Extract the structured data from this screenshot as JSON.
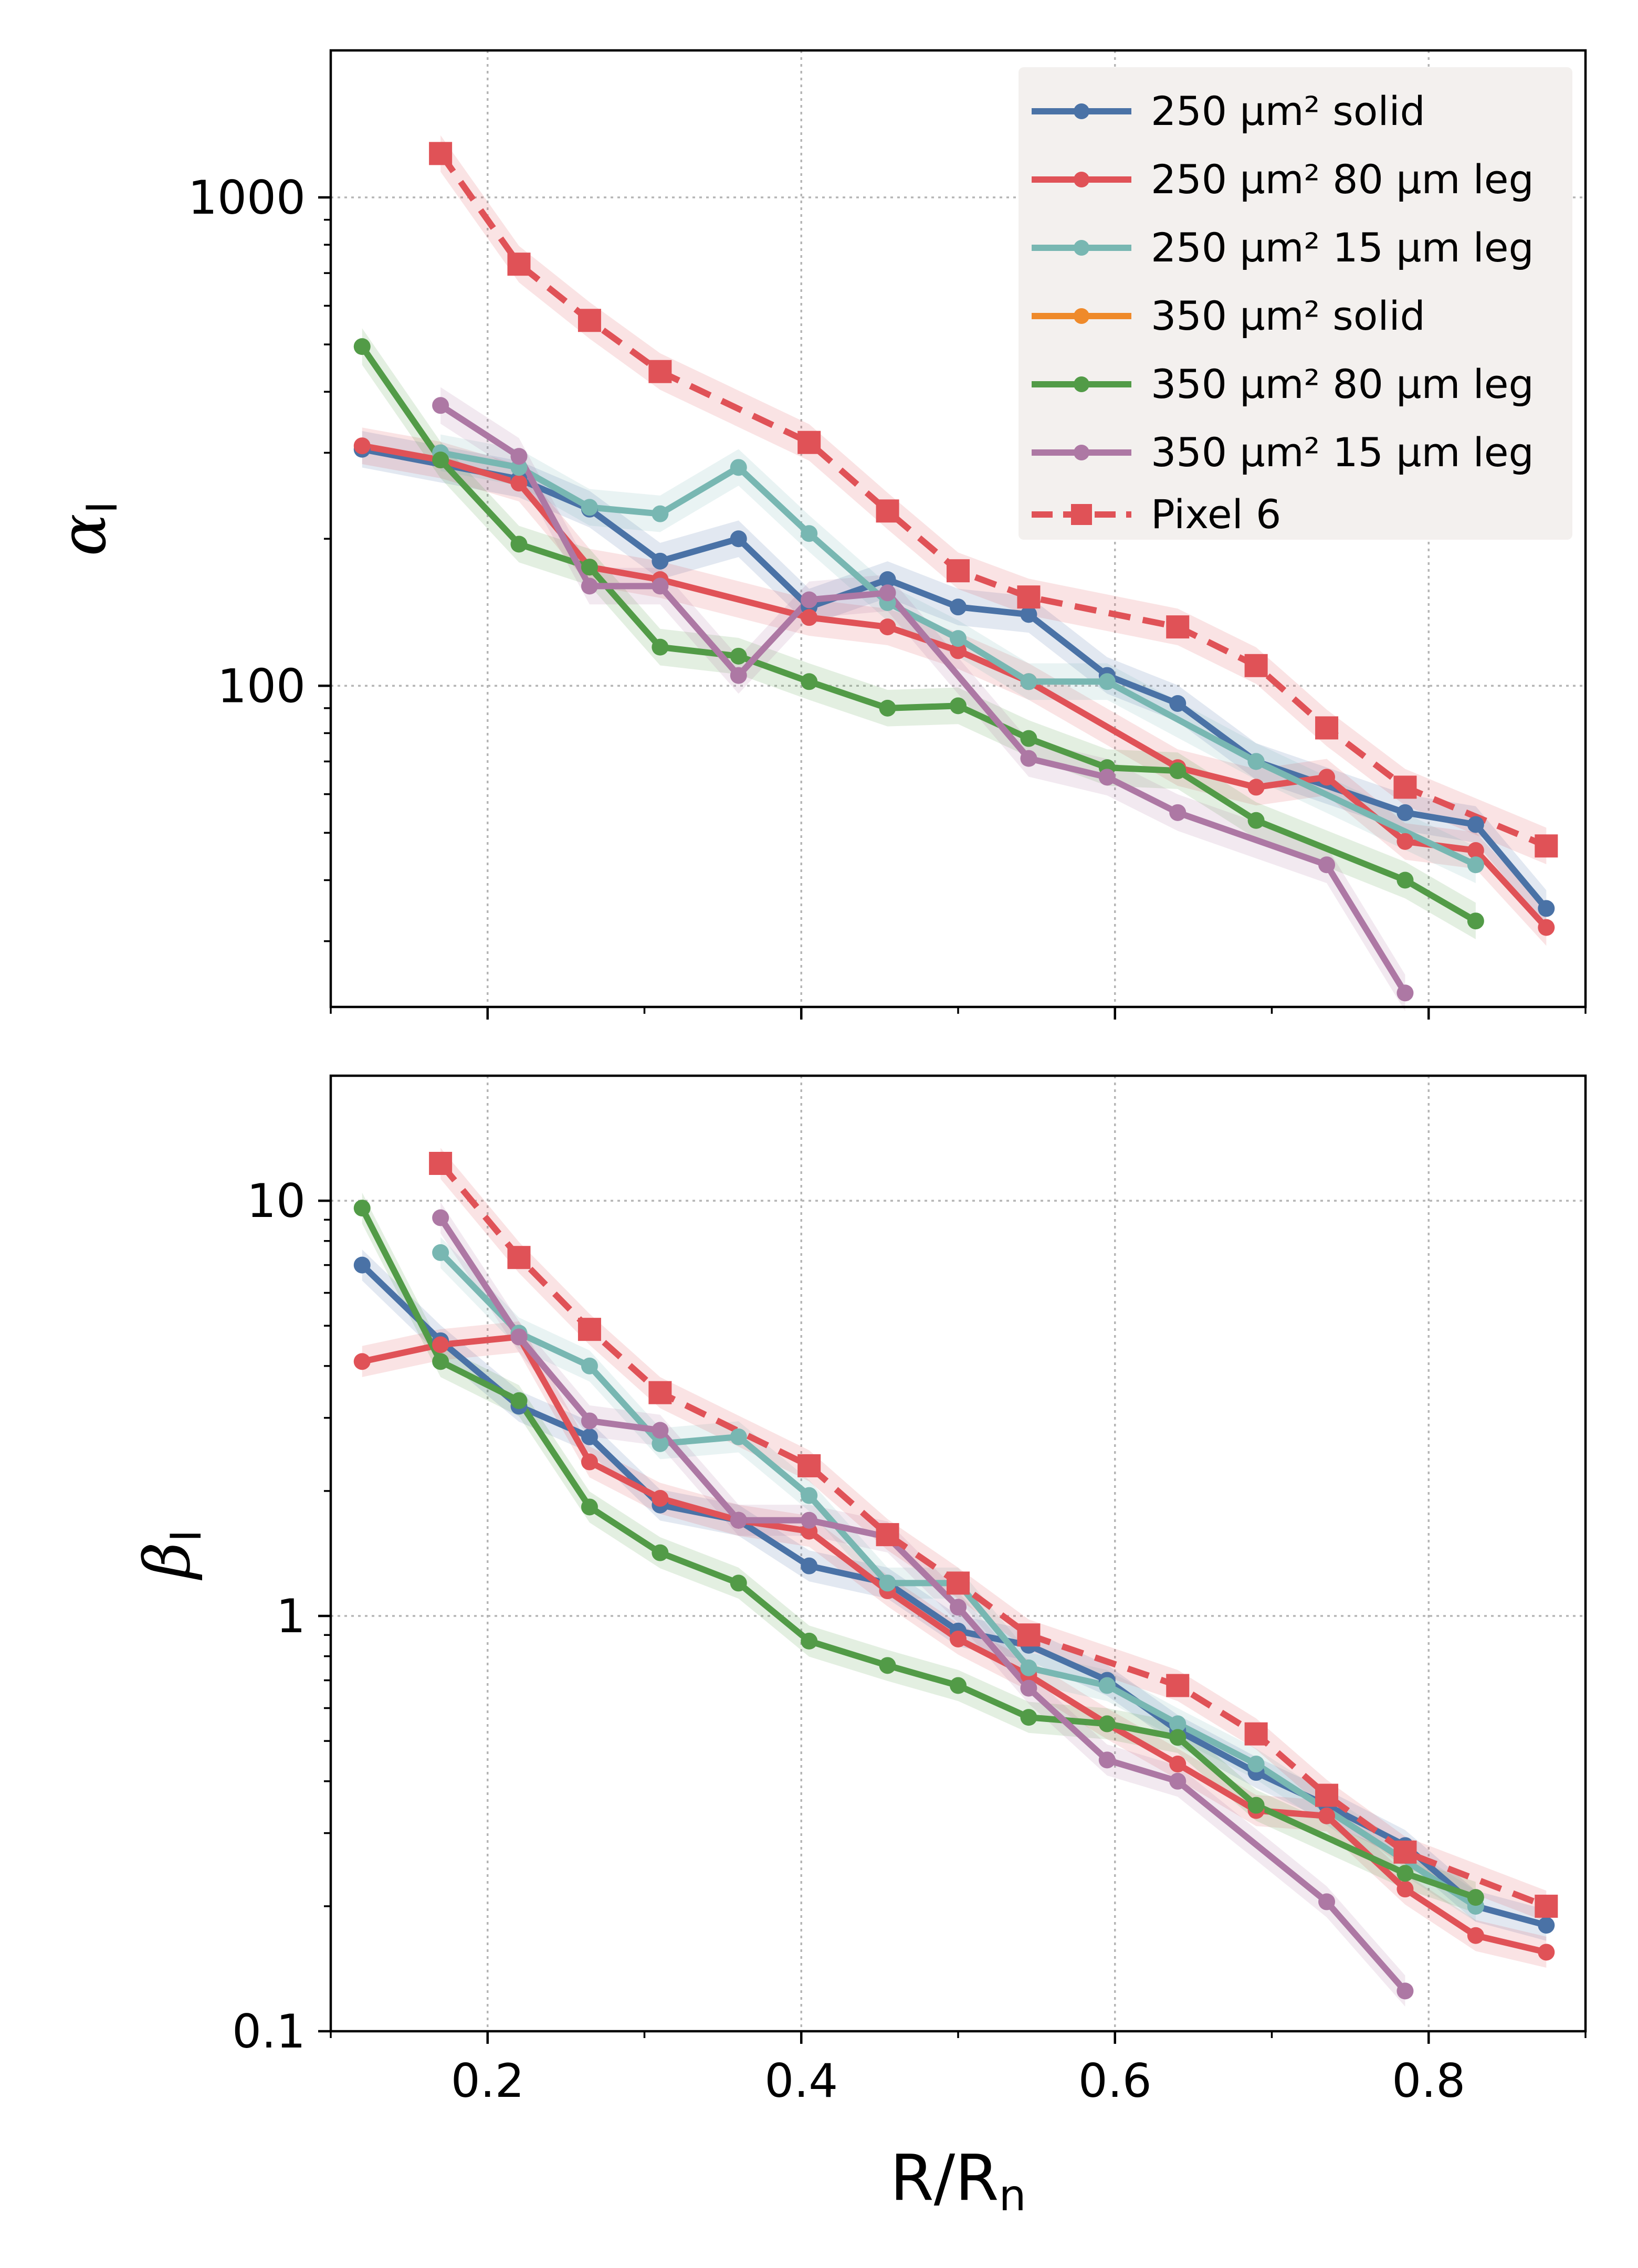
{
  "figure": {
    "xlabel_main": "R/R",
    "xlabel_sub": "n"
  },
  "colors": {
    "250_solid": "#4a72a6",
    "250_80": "#e05257",
    "250_15": "#78b7b2",
    "350_solid": "#ef8a2a",
    "350_80": "#529b47",
    "350_15": "#ad78a4",
    "pixel6": "#e05257",
    "legend_bg": "#f3f0ee"
  },
  "legend": {
    "entries": [
      {
        "key": "250_solid",
        "label": "250 μm² solid",
        "style": "solid",
        "marker": "circle"
      },
      {
        "key": "250_80",
        "label": "250 μm² 80 μm leg",
        "style": "solid",
        "marker": "circle"
      },
      {
        "key": "250_15",
        "label": "250 μm² 15 μm leg",
        "style": "solid",
        "marker": "circle"
      },
      {
        "key": "350_solid",
        "label": "350 μm² solid",
        "style": "solid",
        "marker": "circle"
      },
      {
        "key": "350_80",
        "label": "350 μm² 80 μm leg",
        "style": "solid",
        "marker": "circle"
      },
      {
        "key": "350_15",
        "label": "350 μm² 15 μm leg",
        "style": "solid",
        "marker": "circle"
      },
      {
        "key": "pixel6",
        "label": "Pixel 6",
        "style": "dashed",
        "marker": "square"
      }
    ]
  },
  "chart_data": [
    {
      "type": "line",
      "panel": "top",
      "ylabel_main": "α",
      "ylabel_sub": "I",
      "yscale": "log",
      "ylim": [
        22,
        2000
      ],
      "xlim": [
        0.1,
        0.9
      ],
      "xticks": [
        0.2,
        0.4,
        0.6,
        0.8
      ],
      "xtick_labels": [
        "0.2",
        "0.4",
        "0.6",
        "0.8"
      ],
      "yticks": [
        100,
        1000
      ],
      "ytick_labels": [
        "100",
        "1000"
      ],
      "grid": true,
      "legend_position": "top-right",
      "series": [
        {
          "key": "250_solid",
          "name": "250 μm² solid",
          "x": [
            0.12,
            0.22,
            0.265,
            0.31,
            0.36,
            0.405,
            0.455,
            0.5,
            0.545,
            0.595,
            0.64,
            0.69,
            0.785,
            0.83,
            0.875
          ],
          "y": [
            305,
            265,
            230,
            180,
            200,
            145,
            165,
            145,
            140,
            105,
            92,
            70,
            55,
            52,
            35
          ]
        },
        {
          "key": "250_80",
          "name": "250 μm² 80 μm leg",
          "x": [
            0.12,
            0.17,
            0.22,
            0.265,
            0.31,
            0.405,
            0.455,
            0.5,
            0.545,
            0.64,
            0.69,
            0.735,
            0.785,
            0.83,
            0.875
          ],
          "y": [
            310,
            290,
            260,
            175,
            165,
            138,
            132,
            118,
            102,
            68,
            62,
            65,
            48,
            46,
            32
          ]
        },
        {
          "key": "250_15",
          "name": "250 μm² 15 μm leg",
          "x": [
            0.17,
            0.22,
            0.265,
            0.31,
            0.36,
            0.405,
            0.455,
            0.5,
            0.545,
            0.595,
            0.69,
            0.83
          ],
          "y": [
            300,
            280,
            232,
            225,
            280,
            205,
            148,
            125,
            102,
            102,
            70,
            43
          ]
        },
        {
          "key": "350_80",
          "name": "350 μm² 80 μm leg",
          "x": [
            0.12,
            0.17,
            0.22,
            0.265,
            0.31,
            0.36,
            0.405,
            0.455,
            0.5,
            0.545,
            0.595,
            0.64,
            0.69,
            0.785,
            0.83
          ],
          "y": [
            495,
            290,
            195,
            175,
            120,
            115,
            102,
            90,
            91,
            78,
            68,
            67,
            53,
            40,
            33
          ]
        },
        {
          "key": "350_15",
          "name": "350 μm² 15 μm leg",
          "x": [
            0.17,
            0.22,
            0.265,
            0.31,
            0.36,
            0.405,
            0.455,
            0.545,
            0.595,
            0.64,
            0.735,
            0.785
          ],
          "y": [
            375,
            295,
            160,
            160,
            105,
            150,
            155,
            71,
            65,
            55,
            43,
            23.5
          ]
        },
        {
          "key": "pixel6",
          "name": "Pixel 6",
          "x": [
            0.17,
            0.22,
            0.265,
            0.31,
            0.405,
            0.455,
            0.5,
            0.545,
            0.64,
            0.69,
            0.735,
            0.785,
            0.875
          ],
          "y": [
            1230,
            730,
            560,
            440,
            315,
            228,
            172,
            152,
            132,
            110,
            82,
            62,
            47
          ]
        }
      ]
    },
    {
      "type": "line",
      "panel": "bottom",
      "ylabel_main": "β",
      "ylabel_sub": "I",
      "yscale": "log",
      "ylim": [
        0.1,
        20
      ],
      "xlim": [
        0.1,
        0.9
      ],
      "xticks": [
        0.2,
        0.4,
        0.6,
        0.8
      ],
      "xtick_labels": [
        "0.2",
        "0.4",
        "0.6",
        "0.8"
      ],
      "yticks": [
        0.1,
        1,
        10
      ],
      "ytick_labels": [
        "0.1",
        "1",
        "10"
      ],
      "grid": true,
      "series": [
        {
          "key": "250_solid",
          "name": "250 μm² solid",
          "x": [
            0.12,
            0.17,
            0.22,
            0.265,
            0.31,
            0.36,
            0.405,
            0.455,
            0.5,
            0.545,
            0.595,
            0.64,
            0.69,
            0.735,
            0.785,
            0.83,
            0.875
          ],
          "y": [
            7.0,
            4.6,
            3.2,
            2.7,
            1.85,
            1.7,
            1.32,
            1.2,
            0.92,
            0.85,
            0.7,
            0.53,
            0.42,
            0.35,
            0.28,
            0.2,
            0.18
          ]
        },
        {
          "key": "250_80",
          "name": "250 μm² 80 μm leg",
          "x": [
            0.12,
            0.17,
            0.22,
            0.265,
            0.31,
            0.36,
            0.405,
            0.455,
            0.5,
            0.545,
            0.595,
            0.64,
            0.69,
            0.735,
            0.785,
            0.83,
            0.875
          ],
          "y": [
            4.1,
            4.5,
            4.7,
            2.35,
            1.92,
            1.7,
            1.6,
            1.15,
            0.88,
            0.72,
            0.55,
            0.44,
            0.34,
            0.33,
            0.22,
            0.17,
            0.155
          ]
        },
        {
          "key": "250_15",
          "name": "250 μm² 15 μm leg",
          "x": [
            0.17,
            0.22,
            0.265,
            0.31,
            0.36,
            0.405,
            0.455,
            0.5,
            0.545,
            0.595,
            0.64,
            0.69,
            0.83
          ],
          "y": [
            7.5,
            4.8,
            4.0,
            2.6,
            2.7,
            1.95,
            1.2,
            1.2,
            0.75,
            0.68,
            0.55,
            0.44,
            0.2
          ]
        },
        {
          "key": "350_80",
          "name": "350 μm² 80 μm leg",
          "x": [
            0.12,
            0.17,
            0.22,
            0.265,
            0.31,
            0.36,
            0.405,
            0.455,
            0.5,
            0.545,
            0.595,
            0.64,
            0.69,
            0.785,
            0.83
          ],
          "y": [
            9.6,
            4.1,
            3.3,
            1.83,
            1.42,
            1.2,
            0.87,
            0.76,
            0.68,
            0.57,
            0.55,
            0.51,
            0.35,
            0.24,
            0.21
          ]
        },
        {
          "key": "350_15",
          "name": "350 μm² 15 μm leg",
          "x": [
            0.17,
            0.22,
            0.265,
            0.31,
            0.36,
            0.405,
            0.455,
            0.5,
            0.545,
            0.595,
            0.64,
            0.735,
            0.785
          ],
          "y": [
            9.1,
            4.7,
            2.95,
            2.8,
            1.7,
            1.7,
            1.55,
            1.05,
            0.67,
            0.45,
            0.4,
            0.205,
            0.125
          ]
        },
        {
          "key": "pixel6",
          "name": "Pixel 6",
          "x": [
            0.17,
            0.22,
            0.265,
            0.31,
            0.405,
            0.455,
            0.5,
            0.545,
            0.64,
            0.69,
            0.735,
            0.785,
            0.875
          ],
          "y": [
            12.3,
            7.3,
            4.9,
            3.45,
            2.3,
            1.57,
            1.2,
            0.9,
            0.68,
            0.52,
            0.37,
            0.27,
            0.2
          ]
        }
      ]
    }
  ]
}
